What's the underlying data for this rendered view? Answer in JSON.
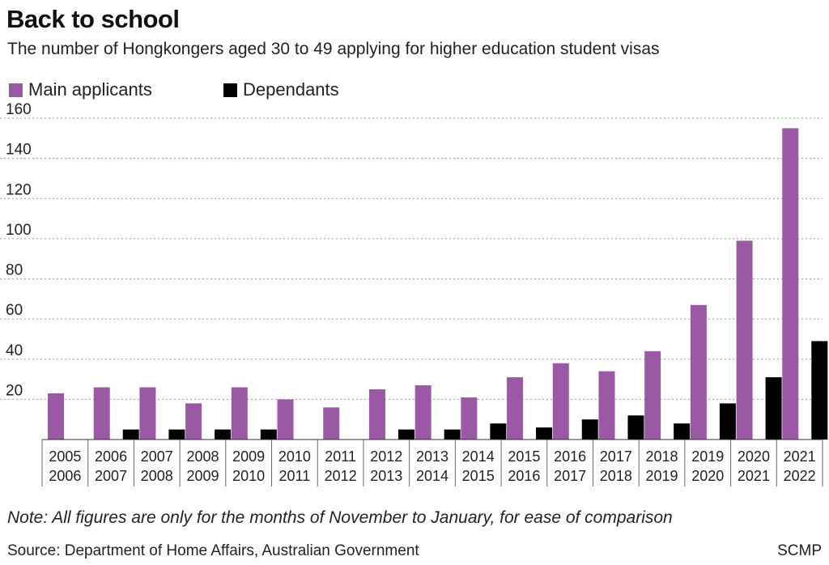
{
  "title": "Back to school",
  "subtitle": "The number of Hongkongers aged 30 to 49 applying for higher education student visas",
  "note": "Note: All figures are only for the months of November to January, for ease of comparison",
  "source": "Source: Department of Home Affairs, Australian Government",
  "credit": "SCMP",
  "colors": {
    "main": "#9b59a5",
    "dependants": "#000000",
    "grid": "#9a9a9a",
    "axis": "#333333"
  },
  "legend": [
    {
      "label": "Main applicants",
      "color": "#9b59a5"
    },
    {
      "label": "Dependants",
      "color": "#000000"
    }
  ],
  "chart_data": {
    "type": "bar",
    "title": "Back to school",
    "categories": [
      [
        "2005",
        "2006"
      ],
      [
        "2006",
        "2007"
      ],
      [
        "2007",
        "2008"
      ],
      [
        "2008",
        "2009"
      ],
      [
        "2009",
        "2010"
      ],
      [
        "2010",
        "2011"
      ],
      [
        "2011",
        "2012"
      ],
      [
        "2012",
        "2013"
      ],
      [
        "2013",
        "2014"
      ],
      [
        "2014",
        "2015"
      ],
      [
        "2015",
        "2016"
      ],
      [
        "2016",
        "2017"
      ],
      [
        "2017",
        "2018"
      ],
      [
        "2018",
        "2019"
      ],
      [
        "2019",
        "2020"
      ],
      [
        "2020",
        "2021"
      ],
      [
        "2021",
        "2022"
      ]
    ],
    "series": [
      {
        "name": "Main applicants",
        "color": "#9b59a5",
        "values": [
          23,
          26,
          26,
          18,
          26,
          20,
          16,
          25,
          27,
          21,
          31,
          38,
          34,
          44,
          67,
          99,
          155
        ]
      },
      {
        "name": "Dependants",
        "color": "#000000",
        "values": [
          0,
          5,
          5,
          5,
          5,
          0,
          0,
          5,
          5,
          8,
          6,
          10,
          12,
          8,
          18,
          31,
          49
        ]
      }
    ],
    "yticks": [
      20,
      40,
      60,
      80,
      100,
      120,
      140,
      160
    ],
    "ylim": [
      0,
      160
    ],
    "grid": true,
    "legend_position": "top-left"
  }
}
